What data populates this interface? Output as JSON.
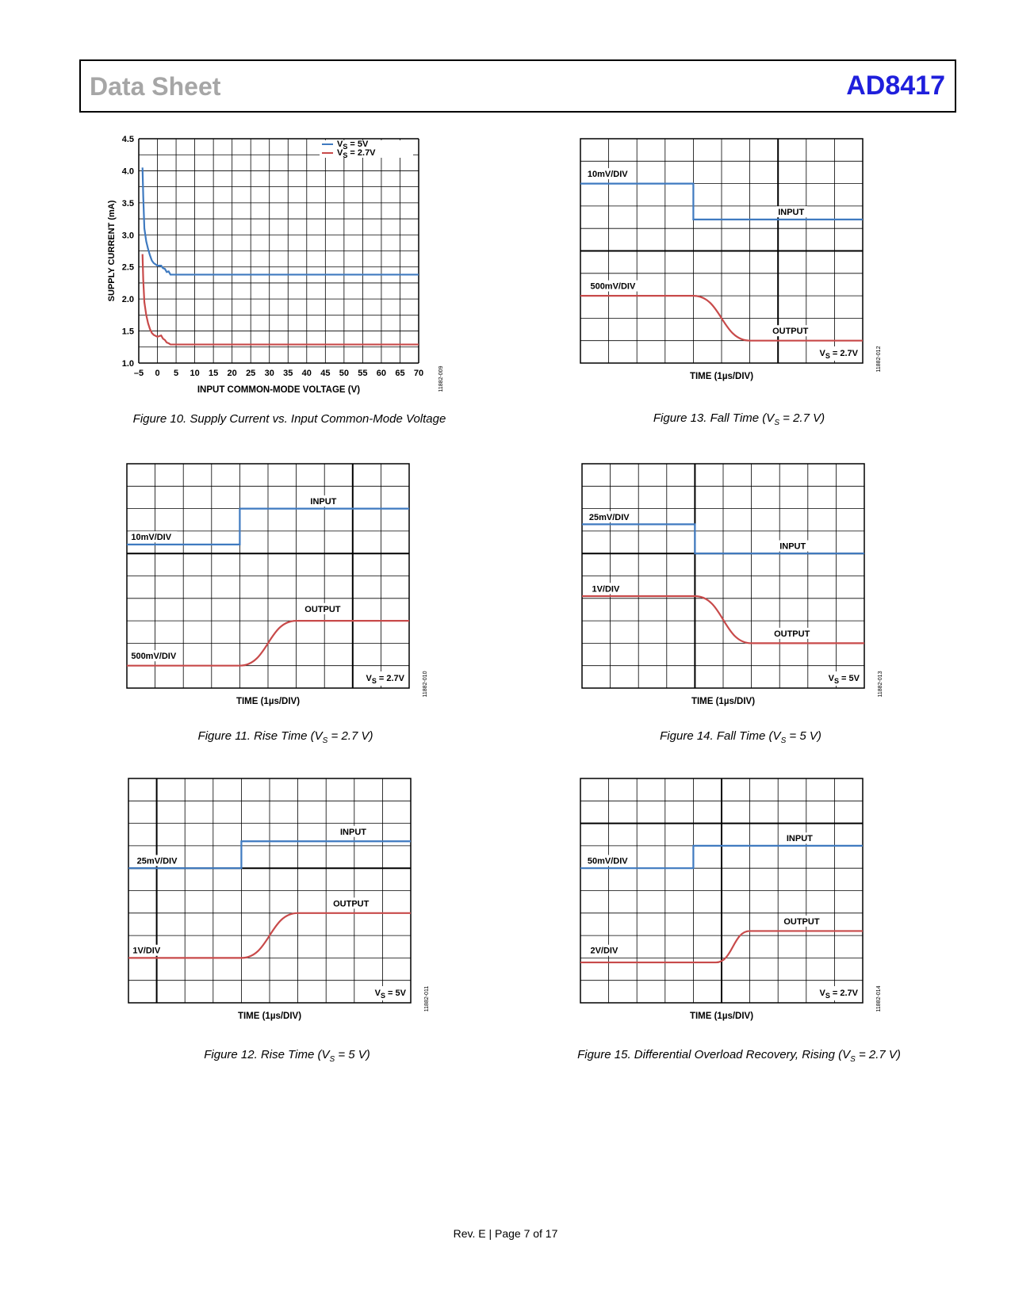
{
  "header": {
    "left": "Data Sheet",
    "right": "AD8417"
  },
  "footer": "Rev. E | Page 7 of 17",
  "colors": {
    "blue": "#3f7ac0",
    "red": "#c84a4a",
    "brand": "#1f1fdc"
  },
  "chart_data": [
    {
      "id": "fig10",
      "type": "line",
      "caption": "Figure 10. Supply Current vs. Input Common-Mode Voltage",
      "xlabel": "INPUT COMMON-MODE VOLTAGE (V)",
      "ylabel": "SUPPLY CURRENT (mA)",
      "xlim": [
        -5,
        70
      ],
      "ylim": [
        1.0,
        4.5
      ],
      "xticks": [
        "–5",
        "0",
        "5",
        "10",
        "15",
        "20",
        "25",
        "30",
        "35",
        "40",
        "45",
        "50",
        "55",
        "60",
        "65",
        "70"
      ],
      "yticks": [
        "1.0",
        "1.5",
        "2.0",
        "2.5",
        "3.0",
        "3.5",
        "4.0",
        "4.5"
      ],
      "grid": true,
      "legend": "top-right",
      "series": [
        {
          "name": "VS = 5V",
          "legend_main": "V",
          "legend_sub": "S",
          "legend_rest": " = 5V",
          "x": [
            -4,
            -3.8,
            -3.5,
            -3,
            -2.5,
            -2,
            -1.5,
            -1,
            0,
            1,
            1.5,
            2,
            2.5,
            3,
            3.5,
            4,
            70
          ],
          "y": [
            4.05,
            3.6,
            3.1,
            2.9,
            2.78,
            2.68,
            2.6,
            2.56,
            2.52,
            2.52,
            2.48,
            2.47,
            2.42,
            2.43,
            2.38,
            2.38,
            2.38
          ]
        },
        {
          "name": "VS = 2.7V",
          "legend_main": "V",
          "legend_sub": "S",
          "legend_rest": " = 2.7V",
          "x": [
            -4,
            -3.8,
            -3.5,
            -3,
            -2.5,
            -2,
            -1.5,
            -1,
            0,
            1,
            1.5,
            2,
            2.5,
            3,
            3.5,
            4,
            70
          ],
          "y": [
            2.7,
            2.3,
            1.95,
            1.75,
            1.62,
            1.53,
            1.47,
            1.44,
            1.41,
            1.43,
            1.38,
            1.36,
            1.32,
            1.31,
            1.29,
            1.29,
            1.29
          ]
        }
      ],
      "fig_id": "11882-009"
    },
    {
      "id": "fig11",
      "type": "line",
      "caption_main": "Figure 11. Rise Time (V",
      "caption_sub": "S",
      "caption_rest": " = 2.7 V)",
      "xlabel": "TIME (1µs/DIV)",
      "top_trace_label": "10mV/DIV",
      "top_name": "INPUT",
      "bottom_trace_label": "500mV/DIV",
      "bottom_name": "OUTPUT",
      "vs_main": "V",
      "vs_sub": "S",
      "vs_rest": " = 2.7V",
      "fig_id": "11882-010"
    },
    {
      "id": "fig12",
      "type": "line",
      "caption_main": "Figure 12. Rise Time (V",
      "caption_sub": "S",
      "caption_rest": " = 5 V)",
      "xlabel": "TIME (1µs/DIV)",
      "top_trace_label": "25mV/DIV",
      "top_name": "INPUT",
      "bottom_trace_label": "1V/DIV",
      "bottom_name": "OUTPUT",
      "vs_main": "V",
      "vs_sub": "S",
      "vs_rest": " = 5V",
      "fig_id": "11882-011"
    },
    {
      "id": "fig13",
      "type": "line",
      "caption_main": "Figure 13. Fall Time (V",
      "caption_sub": "S",
      "caption_rest": " = 2.7 V)",
      "xlabel": "TIME (1µs/DIV)",
      "top_trace_label": "10mV/DIV",
      "top_name": "INPUT",
      "bottom_trace_label": "500mV/DIV",
      "bottom_name": "OUTPUT",
      "vs_main": "V",
      "vs_sub": "S",
      "vs_rest": " = 2.7V",
      "fig_id": "11882-012"
    },
    {
      "id": "fig14",
      "type": "line",
      "caption_main": "Figure 14. Fall Time (V",
      "caption_sub": "S",
      "caption_rest": " = 5 V)",
      "xlabel": "TIME (1µs/DIV)",
      "top_trace_label": "25mV/DIV",
      "top_name": "INPUT",
      "bottom_trace_label": "1V/DIV",
      "bottom_name": "OUTPUT",
      "vs_main": "V",
      "vs_sub": "S",
      "vs_rest": " = 5V",
      "fig_id": "11882-013"
    },
    {
      "id": "fig15",
      "type": "line",
      "caption_main": "Figure 15. Differential Overload Recovery, Rising (V",
      "caption_sub": "S",
      "caption_rest": " = 2.7 V)",
      "xlabel": "TIME (1µs/DIV)",
      "top_trace_label": "50mV/DIV",
      "top_name": "INPUT",
      "bottom_trace_label": "2V/DIV",
      "bottom_name": "OUTPUT",
      "vs_main": "V",
      "vs_sub": "S",
      "vs_rest": " = 2.7V",
      "fig_id": "11882-014"
    }
  ]
}
